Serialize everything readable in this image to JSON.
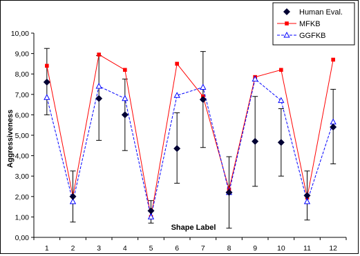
{
  "chart_data": {
    "type": "line",
    "title": "",
    "xlabel": "Shape Label",
    "ylabel": "Aggressiveness",
    "ylim": [
      0,
      10
    ],
    "y_ticks": [
      "0,00",
      "1,00",
      "2,00",
      "3,00",
      "4,00",
      "5,00",
      "6,00",
      "7,00",
      "8,00",
      "9,00",
      "10,00"
    ],
    "x": [
      "1",
      "2",
      "3",
      "4",
      "5",
      "6",
      "7",
      "8",
      "9",
      "10",
      "11",
      "12"
    ],
    "grid": false,
    "legend_position": "top-right",
    "series": [
      {
        "name": "Human Eval.",
        "style": "diamond-markers-with-error-bars",
        "color": "#000033",
        "values": [
          7.6,
          2.0,
          6.8,
          6.0,
          1.3,
          4.35,
          6.75,
          2.2,
          4.7,
          4.65,
          2.05,
          5.4
        ],
        "error_low": [
          6.0,
          0.75,
          4.75,
          4.25,
          0.7,
          2.65,
          4.4,
          0.45,
          2.5,
          3.0,
          0.85,
          3.6
        ],
        "error_high": [
          9.25,
          3.25,
          8.9,
          7.75,
          1.8,
          6.1,
          9.1,
          3.95,
          6.9,
          6.3,
          3.25,
          7.25
        ]
      },
      {
        "name": "MFKB",
        "style": "solid-line-square-markers",
        "color": "#ff0000",
        "values": [
          8.4,
          2.0,
          8.95,
          8.2,
          1.0,
          8.5,
          6.9,
          2.35,
          7.85,
          8.2,
          1.95,
          8.7
        ]
      },
      {
        "name": "GGFKB",
        "style": "dashed-line-triangle-markers",
        "color": "#0000ff",
        "values": [
          6.85,
          1.75,
          7.4,
          6.8,
          1.0,
          6.95,
          7.35,
          2.2,
          7.75,
          6.7,
          1.75,
          5.65
        ]
      }
    ]
  }
}
